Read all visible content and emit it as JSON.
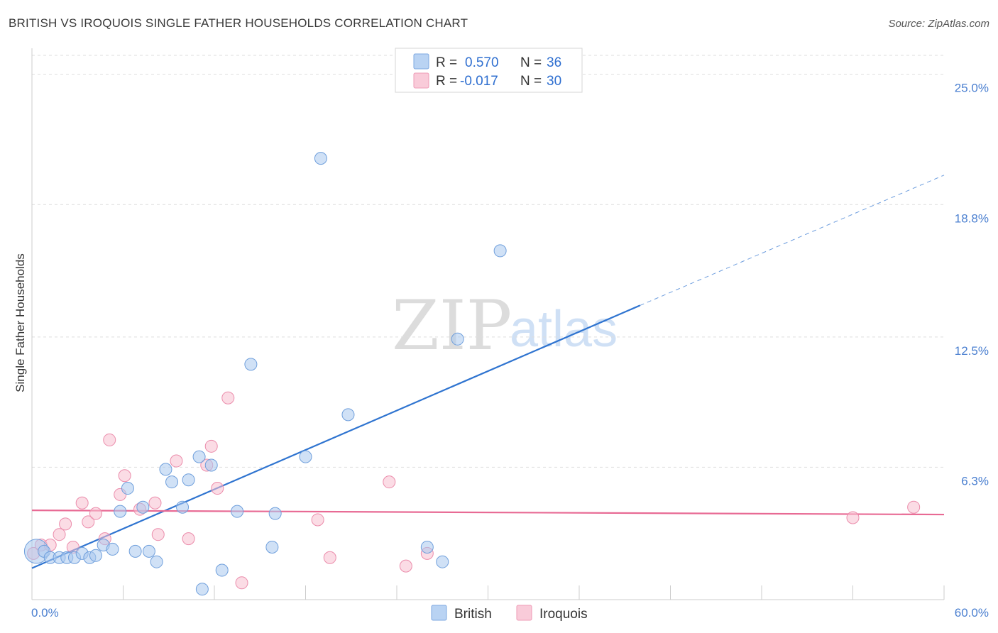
{
  "header": {
    "title": "BRITISH VS IROQUOIS SINGLE FATHER HOUSEHOLDS CORRELATION CHART",
    "source": "Source: ZipAtlas.com"
  },
  "watermark": {
    "zip": "ZIP",
    "atlas": "atlas"
  },
  "legend": {
    "british": {
      "r_label": "R = ",
      "r_value": "0.570",
      "n_label": "N = ",
      "n_value": "36"
    },
    "iroquois": {
      "r_label": "R = ",
      "r_value": "-0.017",
      "n_label": "N = ",
      "n_value": "30"
    }
  },
  "bottom_legend": {
    "british": "British",
    "iroquois": "Iroquois"
  },
  "colors": {
    "british_fill": "#a9c8ef",
    "british_stroke": "#6f9fdc",
    "british_line": "#2f74d0",
    "iroquois_fill": "#f7bfd0",
    "iroquois_stroke": "#eb8cab",
    "iroquois_line": "#e86a94",
    "grid": "#dddddd",
    "tick_label": "#4a7fd0"
  },
  "chart_data": {
    "type": "scatter",
    "title": "BRITISH VS IROQUOIS SINGLE FATHER HOUSEHOLDS CORRELATION CHART",
    "xlabel": "",
    "ylabel": "Single Father Households",
    "xlim": [
      0,
      60
    ],
    "ylim": [
      0,
      25.9
    ],
    "x_tick_labels": [
      "0.0%",
      "60.0%"
    ],
    "y_ticks": [
      6.3,
      12.5,
      18.8,
      25.0
    ],
    "y_tick_labels": [
      "6.3%",
      "12.5%",
      "18.8%",
      "25.0%"
    ],
    "series": [
      {
        "name": "British",
        "points": [
          {
            "x": 0.3,
            "y": 2.3,
            "size": "large"
          },
          {
            "x": 0.8,
            "y": 2.3
          },
          {
            "x": 1.2,
            "y": 2.0
          },
          {
            "x": 1.8,
            "y": 2.0
          },
          {
            "x": 2.3,
            "y": 2.0
          },
          {
            "x": 2.8,
            "y": 2.0
          },
          {
            "x": 3.3,
            "y": 2.2
          },
          {
            "x": 3.8,
            "y": 2.0
          },
          {
            "x": 4.2,
            "y": 2.1
          },
          {
            "x": 4.7,
            "y": 2.6
          },
          {
            "x": 5.3,
            "y": 2.4
          },
          {
            "x": 5.8,
            "y": 4.2
          },
          {
            "x": 6.3,
            "y": 5.3
          },
          {
            "x": 6.8,
            "y": 2.3
          },
          {
            "x": 7.3,
            "y": 4.4
          },
          {
            "x": 7.7,
            "y": 2.3
          },
          {
            "x": 8.2,
            "y": 1.8
          },
          {
            "x": 8.8,
            "y": 6.2
          },
          {
            "x": 9.2,
            "y": 5.6
          },
          {
            "x": 9.9,
            "y": 4.4
          },
          {
            "x": 10.3,
            "y": 5.7
          },
          {
            "x": 11.0,
            "y": 6.8
          },
          {
            "x": 11.2,
            "y": 0.5
          },
          {
            "x": 11.8,
            "y": 6.4
          },
          {
            "x": 12.5,
            "y": 1.4
          },
          {
            "x": 13.5,
            "y": 4.2
          },
          {
            "x": 14.4,
            "y": 11.2
          },
          {
            "x": 15.8,
            "y": 2.5
          },
          {
            "x": 16.0,
            "y": 4.1
          },
          {
            "x": 18.0,
            "y": 6.8
          },
          {
            "x": 19.0,
            "y": 21.0
          },
          {
            "x": 20.8,
            "y": 8.8
          },
          {
            "x": 26.0,
            "y": 2.5
          },
          {
            "x": 27.0,
            "y": 1.8
          },
          {
            "x": 28.0,
            "y": 12.4
          },
          {
            "x": 30.8,
            "y": 16.6
          }
        ]
      },
      {
        "name": "Iroquois",
        "points": [
          {
            "x": 0.1,
            "y": 2.2
          },
          {
            "x": 0.6,
            "y": 2.6
          },
          {
            "x": 1.2,
            "y": 2.6
          },
          {
            "x": 1.8,
            "y": 3.1
          },
          {
            "x": 2.2,
            "y": 3.6
          },
          {
            "x": 2.7,
            "y": 2.5
          },
          {
            "x": 3.3,
            "y": 4.6
          },
          {
            "x": 3.7,
            "y": 3.7
          },
          {
            "x": 4.2,
            "y": 4.1
          },
          {
            "x": 4.8,
            "y": 2.9
          },
          {
            "x": 5.1,
            "y": 7.6
          },
          {
            "x": 5.8,
            "y": 5.0
          },
          {
            "x": 6.1,
            "y": 5.9
          },
          {
            "x": 7.1,
            "y": 4.3
          },
          {
            "x": 8.1,
            "y": 4.6
          },
          {
            "x": 8.3,
            "y": 3.1
          },
          {
            "x": 9.5,
            "y": 6.6
          },
          {
            "x": 10.3,
            "y": 2.9
          },
          {
            "x": 11.5,
            "y": 6.4
          },
          {
            "x": 11.8,
            "y": 7.3
          },
          {
            "x": 12.2,
            "y": 5.3
          },
          {
            "x": 12.9,
            "y": 9.6
          },
          {
            "x": 13.8,
            "y": 0.8
          },
          {
            "x": 18.8,
            "y": 3.8
          },
          {
            "x": 19.6,
            "y": 2.0
          },
          {
            "x": 23.5,
            "y": 5.6
          },
          {
            "x": 24.6,
            "y": 1.6
          },
          {
            "x": 26.0,
            "y": 2.2
          },
          {
            "x": 54.0,
            "y": 3.9
          },
          {
            "x": 58.0,
            "y": 4.4
          }
        ]
      }
    ],
    "trendlines": [
      {
        "name": "British",
        "x0": 0,
        "y0": 1.5,
        "x1": 40.0,
        "y1": 14.0,
        "dashed_to_x": 60.0,
        "dashed_to_y": 20.2
      },
      {
        "name": "Iroquois",
        "x0": 0,
        "y0": 4.25,
        "x1": 60.0,
        "y1": 4.05
      }
    ]
  }
}
